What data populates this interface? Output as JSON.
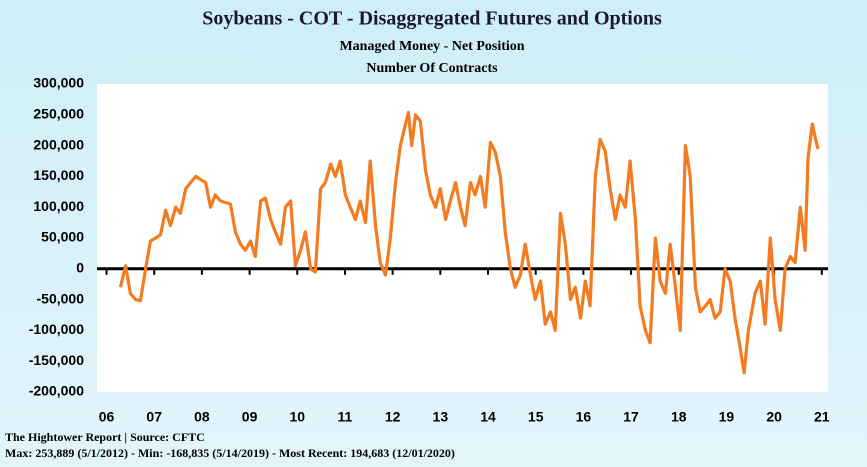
{
  "chart_data": {
    "type": "line",
    "title": "Soybeans - COT - Disaggregated Futures and Options",
    "subtitle": "Managed Money - Net Position",
    "subtitle2": "Number Of Contracts",
    "footer": [
      "The Hightower Report | Source: CFTC",
      "Max: 253,889 (5/1/2012)  -  Min: -168,835 (5/14/2019) - Most Recent: 194,683 (12/01/2020)"
    ],
    "xlim": [
      2005.8,
      2021.13
    ],
    "xticks": [
      {
        "value": 2006,
        "label": "06"
      },
      {
        "value": 2007,
        "label": "07"
      },
      {
        "value": 2008,
        "label": "08"
      },
      {
        "value": 2009,
        "label": "09"
      },
      {
        "value": 2010,
        "label": "10"
      },
      {
        "value": 2011,
        "label": "11"
      },
      {
        "value": 2012,
        "label": "12"
      },
      {
        "value": 2013,
        "label": "13"
      },
      {
        "value": 2014,
        "label": "14"
      },
      {
        "value": 2015,
        "label": "15"
      },
      {
        "value": 2016,
        "label": "16"
      },
      {
        "value": 2017,
        "label": "17"
      },
      {
        "value": 2018,
        "label": "18"
      },
      {
        "value": 2019,
        "label": "19"
      },
      {
        "value": 2020,
        "label": "20"
      },
      {
        "value": 2021,
        "label": "21"
      }
    ],
    "ylim": [
      -200000,
      300000
    ],
    "yticks": [
      {
        "value": -200000,
        "label": "-200,000"
      },
      {
        "value": -150000,
        "label": "-150,000"
      },
      {
        "value": -100000,
        "label": "-100,000"
      },
      {
        "value": -50000,
        "label": "-50,000"
      },
      0,
      {
        "value": 50000,
        "label": "50,000"
      },
      {
        "value": 100000,
        "label": "100,000"
      },
      {
        "value": 150000,
        "label": "150,000"
      },
      {
        "value": 200000,
        "label": "200,000"
      },
      {
        "value": 250000,
        "label": "250,000"
      },
      {
        "value": 300000,
        "label": "300,000"
      }
    ],
    "series": [
      {
        "name": "Managed Money - Net Position",
        "color": "#f47b20",
        "x": [
          2006.29,
          2006.4,
          2006.5,
          2006.61,
          2006.71,
          2006.82,
          2006.92,
          2007.03,
          2007.13,
          2007.24,
          2007.34,
          2007.45,
          2007.55,
          2007.66,
          2007.76,
          2007.87,
          2007.97,
          2008.08,
          2008.18,
          2008.28,
          2008.39,
          2008.6,
          2008.7,
          2008.81,
          2008.91,
          2009.02,
          2009.12,
          2009.23,
          2009.33,
          2009.44,
          2009.54,
          2009.65,
          2009.75,
          2009.86,
          2009.96,
          2010.07,
          2010.17,
          2010.28,
          2010.38,
          2010.49,
          2010.59,
          2010.7,
          2010.8,
          2010.9,
          2011.01,
          2011.11,
          2011.22,
          2011.32,
          2011.43,
          2011.53,
          2011.64,
          2011.74,
          2011.85,
          2011.95,
          2012.06,
          2012.16,
          2012.33,
          2012.4,
          2012.48,
          2012.58,
          2012.69,
          2012.79,
          2012.9,
          2013.0,
          2013.11,
          2013.21,
          2013.32,
          2013.42,
          2013.52,
          2013.63,
          2013.73,
          2013.84,
          2013.94,
          2014.05,
          2014.15,
          2014.26,
          2014.36,
          2014.47,
          2014.57,
          2014.68,
          2014.78,
          2014.89,
          2014.99,
          2015.1,
          2015.2,
          2015.31,
          2015.41,
          2015.52,
          2015.62,
          2015.73,
          2015.83,
          2015.94,
          2016.04,
          2016.14,
          2016.25,
          2016.35,
          2016.46,
          2016.56,
          2016.67,
          2016.77,
          2016.88,
          2016.98,
          2017.09,
          2017.19,
          2017.3,
          2017.4,
          2017.51,
          2017.61,
          2017.72,
          2017.82,
          2017.93,
          2018.03,
          2018.14,
          2018.24,
          2018.35,
          2018.45,
          2018.56,
          2018.66,
          2018.76,
          2018.87,
          2018.97,
          2019.08,
          2019.18,
          2019.29,
          2019.37,
          2019.46,
          2019.6,
          2019.71,
          2019.81,
          2019.92,
          2020.02,
          2020.13,
          2020.23,
          2020.34,
          2020.44,
          2020.55,
          2020.65,
          2020.71,
          2020.8,
          2020.87,
          2020.92
        ],
        "values": [
          -30000,
          5000,
          -40000,
          -50000,
          -52000,
          0,
          45000,
          50000,
          55000,
          95000,
          70000,
          100000,
          90000,
          130000,
          140000,
          150000,
          145000,
          140000,
          100000,
          120000,
          110000,
          105000,
          60000,
          40000,
          30000,
          45000,
          20000,
          110000,
          115000,
          80000,
          60000,
          40000,
          100000,
          110000,
          5000,
          30000,
          60000,
          0,
          -5000,
          130000,
          140000,
          170000,
          150000,
          175000,
          120000,
          100000,
          80000,
          110000,
          75000,
          175000,
          70000,
          10000,
          -10000,
          50000,
          140000,
          200000,
          253889,
          200000,
          250000,
          240000,
          160000,
          120000,
          100000,
          130000,
          80000,
          110000,
          140000,
          100000,
          70000,
          140000,
          120000,
          150000,
          100000,
          205000,
          190000,
          150000,
          60000,
          0,
          -30000,
          -10000,
          40000,
          -10000,
          -50000,
          -20000,
          -90000,
          -70000,
          -100000,
          90000,
          40000,
          -50000,
          -30000,
          -80000,
          -20000,
          -60000,
          150000,
          210000,
          190000,
          130000,
          80000,
          120000,
          100000,
          175000,
          80000,
          -60000,
          -100000,
          -120000,
          50000,
          -20000,
          -40000,
          40000,
          -30000,
          -100000,
          200000,
          150000,
          -30000,
          -70000,
          -60000,
          -50000,
          -80000,
          -70000,
          0,
          -20000,
          -80000,
          -130000,
          -168835,
          -100000,
          -40000,
          -20000,
          -90000,
          50000,
          -50000,
          -100000,
          0,
          20000,
          10000,
          100000,
          30000,
          180000,
          235000,
          210000,
          194683
        ]
      }
    ]
  }
}
